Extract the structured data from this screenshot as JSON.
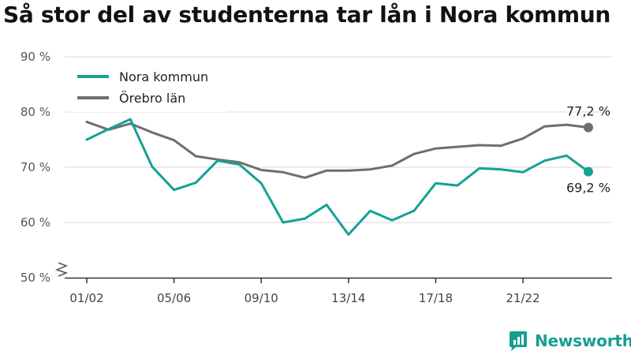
{
  "page": {
    "title": "Så stor del av studenterna tar lån i Nora kommun",
    "brand": "Newsworthy",
    "brand_icon": "newsworthy-logo-icon",
    "brand_color": "#16a08e"
  },
  "chart_data": {
    "type": "line",
    "title": "Så stor del av studenterna tar lån i Nora kommun",
    "xlabel": "",
    "ylabel": "",
    "ylim": [
      50,
      90
    ],
    "yticks": [
      50,
      60,
      70,
      80,
      90
    ],
    "ytick_labels": [
      "50 %",
      "60 %",
      "70 %",
      "80 %",
      "90 %"
    ],
    "y_axis_break": true,
    "grid": true,
    "legend_position": "top-left",
    "x": [
      "01/02",
      "02/03",
      "03/04",
      "04/05",
      "05/06",
      "06/07",
      "07/08",
      "08/09",
      "09/10",
      "10/11",
      "11/12",
      "12/13",
      "13/14",
      "14/15",
      "15/16",
      "16/17",
      "17/18",
      "18/19",
      "19/20",
      "20/21",
      "21/22",
      "22/23",
      "23/24",
      "24/25"
    ],
    "xtick_labels": [
      "01/02",
      "05/06",
      "09/10",
      "13/14",
      "17/18",
      "21/22"
    ],
    "series": [
      {
        "name": "Nora kommun",
        "color": "#15a196",
        "values": [
          75.0,
          76.9,
          78.7,
          70.1,
          65.9,
          67.2,
          71.2,
          70.5,
          67.1,
          60.0,
          60.7,
          63.2,
          57.8,
          62.1,
          60.4,
          62.1,
          67.1,
          66.7,
          69.8,
          69.6,
          69.1,
          71.2,
          72.1,
          69.2
        ],
        "end_label": "69,2 %"
      },
      {
        "name": "Örebro län",
        "color": "#6e6e72",
        "values": [
          78.2,
          76.8,
          77.9,
          76.3,
          74.9,
          72.0,
          71.4,
          70.9,
          69.5,
          69.1,
          68.1,
          69.4,
          69.4,
          69.6,
          70.3,
          72.4,
          73.4,
          73.7,
          74.0,
          73.9,
          75.2,
          77.4,
          77.7,
          77.2
        ],
        "end_label": "77,2 %"
      }
    ]
  }
}
